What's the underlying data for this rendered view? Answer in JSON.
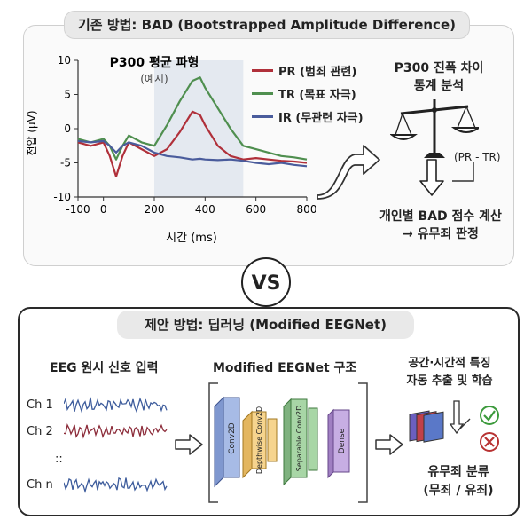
{
  "top": {
    "title": "기존 방법: BAD (Bootstrapped Amplitude Difference)",
    "chart_title": "P300 평균 파형",
    "chart_subtitle": "(예시)",
    "ylabel": "전압 (μV)",
    "xlabel": "시간 (ms)",
    "legend": [
      {
        "label": "PR (범죄 관련)",
        "color": "#b0303a"
      },
      {
        "label": "TR (목표 자극)",
        "color": "#4f8f4f"
      },
      {
        "label": "IR (무관련 자극)",
        "color": "#4a5c9c"
      }
    ],
    "right_title": "P300 진폭 차이",
    "right_title2": "통계 분석",
    "diff_label": "(PR - TR)",
    "result1": "개인별 BAD 점수 계산",
    "result2": "→ 유무죄 판정"
  },
  "chart_data": {
    "type": "line",
    "title": "P300 평균 파형",
    "subtitle": "(예시)",
    "xlabel": "시간 (ms)",
    "ylabel": "전압 (μV)",
    "xlim": [
      -100,
      800
    ],
    "ylim": [
      -10,
      10
    ],
    "xticks": [
      -100,
      0,
      200,
      400,
      600,
      800
    ],
    "yticks": [
      -10,
      -5,
      0,
      5,
      10
    ],
    "shaded_region": [
      200,
      550
    ],
    "x": [
      -100,
      -50,
      0,
      25,
      50,
      75,
      100,
      150,
      200,
      250,
      300,
      350,
      380,
      400,
      450,
      500,
      550,
      600,
      650,
      700,
      750,
      800
    ],
    "series": [
      {
        "name": "PR (범죄 관련)",
        "color": "#b0303a",
        "values": [
          -2,
          -2.5,
          -2,
          -4,
          -7,
          -4,
          -2,
          -3,
          -4,
          -3,
          -0.5,
          2.5,
          2,
          0.5,
          -2.5,
          -4,
          -4.5,
          -4.3,
          -4.5,
          -4.7,
          -4.8,
          -5
        ]
      },
      {
        "name": "TR (목표 자극)",
        "color": "#4f8f4f",
        "values": [
          -1.5,
          -2,
          -1.5,
          -2.5,
          -4.5,
          -2.5,
          -1,
          -2,
          -2.5,
          0.5,
          4,
          7,
          7.5,
          6,
          3,
          0,
          -2.5,
          -3,
          -3.5,
          -4,
          -4.2,
          -4.5
        ]
      },
      {
        "name": "IR (무관련 자극)",
        "color": "#4a5c9c",
        "values": [
          -1.8,
          -2,
          -1.8,
          -2.5,
          -3.5,
          -2.5,
          -2,
          -2.5,
          -3.5,
          -4,
          -4.2,
          -4.5,
          -4.4,
          -4.5,
          -4.6,
          -4.5,
          -4.7,
          -5,
          -5.2,
          -5,
          -5.3,
          -5.5
        ]
      }
    ]
  },
  "vs": "VS",
  "bottom": {
    "title": "제안 방법: 딥러닝 (Modified EEGNet)",
    "input_title": "EEG 원시 신호 입력",
    "channels": [
      "Ch 1",
      "Ch 2",
      "::",
      "Ch n"
    ],
    "arch_title": "Modified EEGNet 구조",
    "layers": [
      "Conv2D",
      "Depthwise Conv2D",
      "Separable Conv2D",
      "Dense"
    ],
    "feature_title1": "공간·시간적 특징",
    "feature_title2": "자동 추출 및 학습",
    "output1": "유무죄 분류",
    "output2": "(무죄 / 유죄)"
  },
  "colors": {
    "pr": "#b0303a",
    "tr": "#4f8f4f",
    "ir": "#4a5c9c",
    "check": "#3c9a3c",
    "cross": "#b83232"
  }
}
